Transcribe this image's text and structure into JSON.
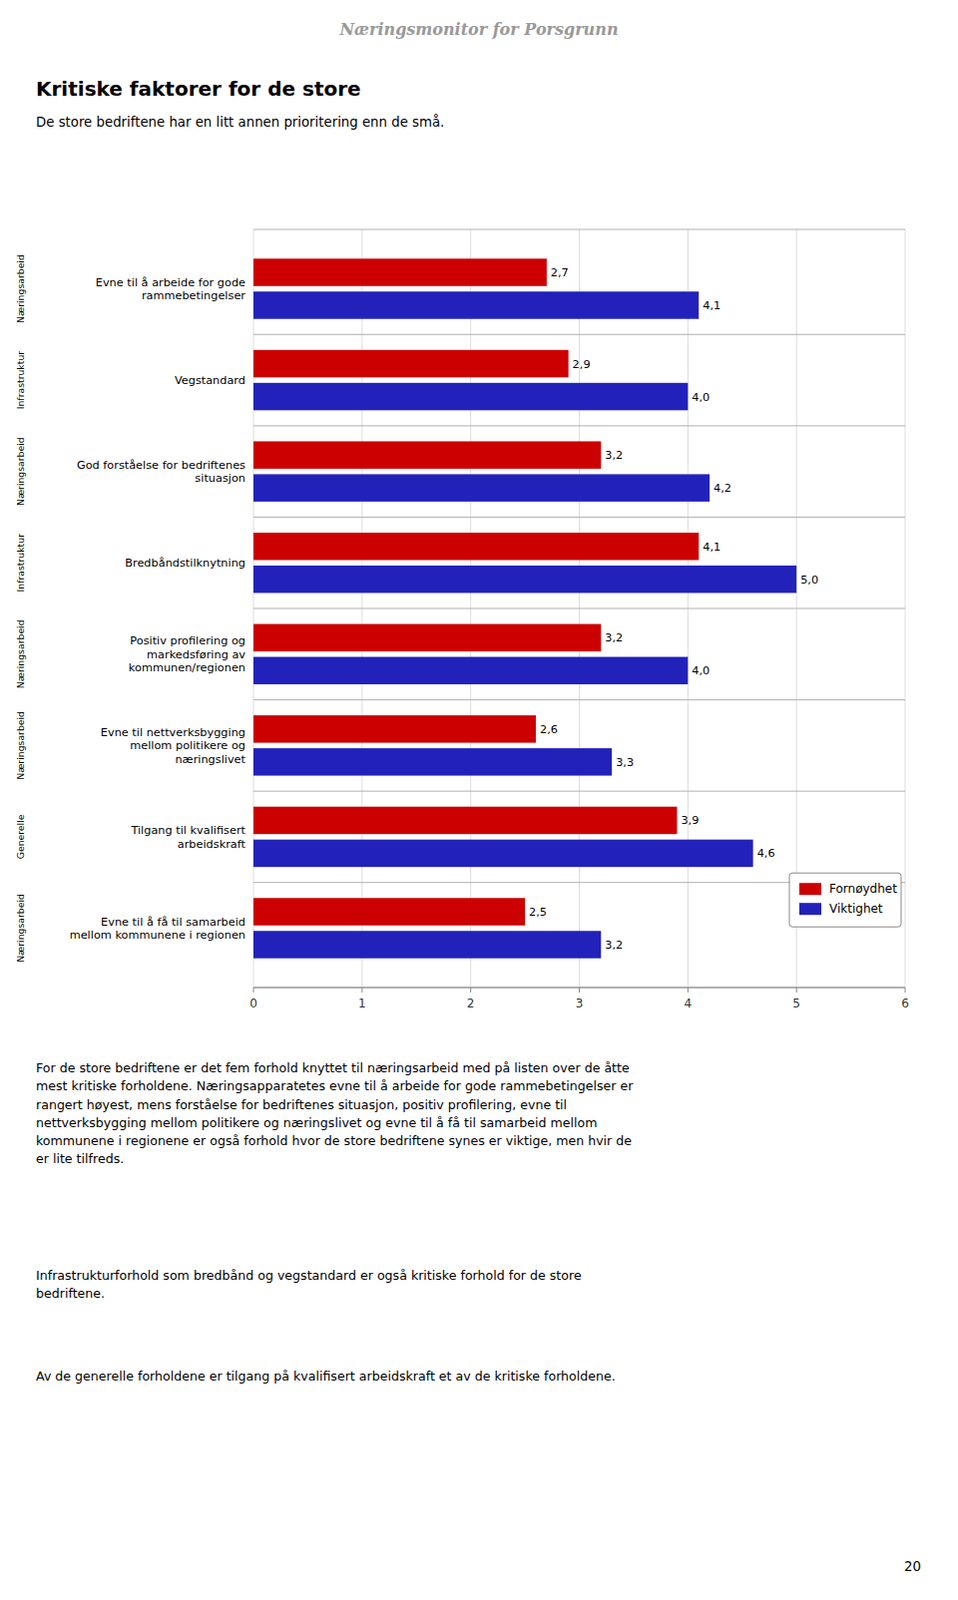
{
  "page_title": "Næringsmonitor for Porsgrunn",
  "chart_data": {
    "type": "bar",
    "orientation": "horizontal",
    "title": "Kritiske faktorer for de store",
    "subtitle": "De store bedriftene har en litt annen prioritering enn de små.",
    "categories": [
      "Evne til å arbeide for gode\nrammebetingelser",
      "Vegstandard",
      "God forståelse for bedriftenes\nsituasjon",
      "Bredbåndstilknytning",
      "Positiv profilering og\nmarkedsføring av\nkommunen/regionen",
      "Evne til nettverksbygging\nmellom politikere og\nnæringslivet",
      "Tilgang til kvalifisert\narbeidskraft",
      "Evne til å få til samarbeid\nmellom kommunene i regionen"
    ],
    "annotations": [
      "Næringsarbeid",
      "Infrastruktur",
      "Næringsarbeid",
      "Infrastruktur",
      "Næringsarbeid",
      "Næringsarbeid",
      "Generelle",
      "Næringsarbeid"
    ],
    "series": [
      {
        "name": "Fornøydhet",
        "color": "#cc0000",
        "values": [
          2.7,
          2.9,
          3.2,
          4.1,
          3.2,
          2.6,
          3.9,
          2.5
        ],
        "value_labels": [
          "2,7",
          "2,9",
          "3,2",
          "4,1",
          "3,2",
          "2,6",
          "3,9",
          "2,5"
        ]
      },
      {
        "name": "Viktighet",
        "color": "#2222bb",
        "values": [
          4.1,
          4.0,
          4.2,
          5.0,
          4.0,
          3.3,
          4.6,
          3.2
        ],
        "value_labels": [
          "4,1",
          "4,0",
          "4,2",
          "5,0",
          "4,0",
          "3,3",
          "4,6",
          "3,2"
        ]
      }
    ],
    "xlim": [
      0,
      6
    ],
    "xticks": [
      0,
      1,
      2,
      3,
      4,
      5,
      6
    ],
    "grid": true,
    "legend": "lower right",
    "data_labels": true
  },
  "body_text": [
    "For de store bedriftene er det fem forhold knyttet til næringsarbeid med på listen over de åtte\nmest kritiske forholdene.  Næringsapparatetes evne til å arbeide for gode rammebetingelser er\nrangert høyest, mens forståelse for bedriftenes situasjon, positiv profilering, evne til\nnettverksbygging mellom politikere og næringslivet og evne til å få til samarbeid mellom\nkommunene i regionene er også forhold hvor de store bedriftene synes er viktige, men hvir de\ner lite tilfreds.",
    "Infrastrukturforhold som bredbånd og vegstandard er også kritiske forhold for de store\nbedriftene.",
    "Av de generelle forholdene er tilgang på kvalifisert arbeidskraft et av de kritiske forholdene."
  ],
  "page_number": "20"
}
